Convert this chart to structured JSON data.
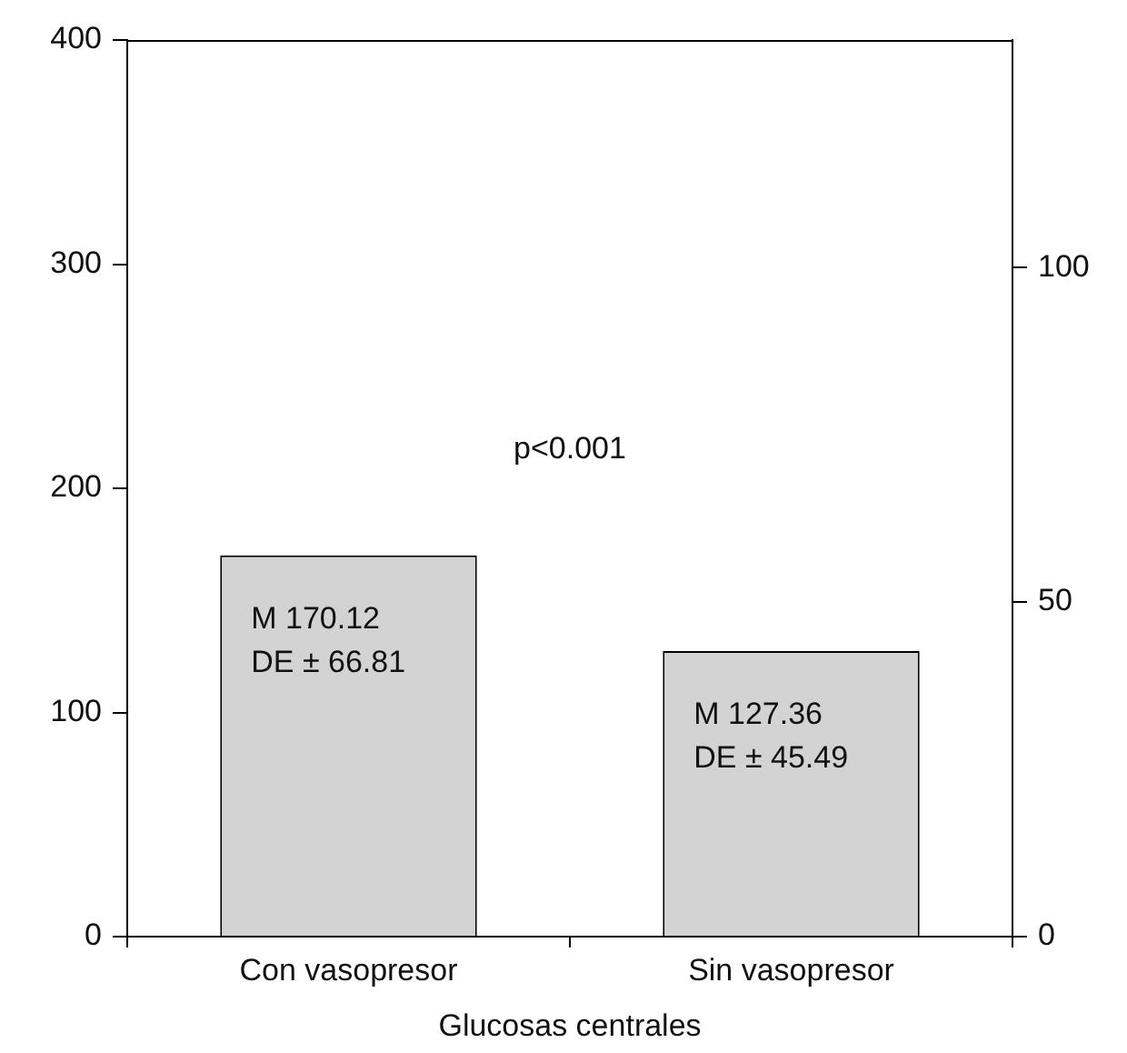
{
  "chart_data": {
    "type": "bar",
    "xlabel": "Glucosas centrales",
    "categories": [
      "Con vasopresor",
      "Sin vasopresor"
    ],
    "values": [
      170.12,
      127.36
    ],
    "color": "#d3d3d3",
    "value_labels": [
      "M 170.12\nDE ± 66.81",
      "M 127.36\nDE ± 45.49"
    ],
    "ylim": [
      0,
      400
    ],
    "yticks": [
      0,
      100,
      200,
      300,
      400
    ],
    "y2lim": [
      0,
      134
    ],
    "y2ticks": [
      0,
      50,
      100
    ],
    "annotations": [
      "p<0.001"
    ],
    "grid": false,
    "legend": false
  }
}
